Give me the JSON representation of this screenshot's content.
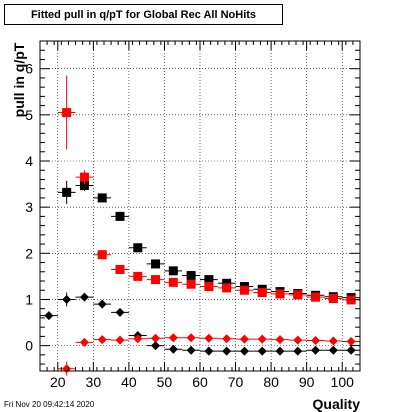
{
  "title": "Fitted pull in q/pT for Global Rec All NoHits",
  "timestamp": "Fri Nov 20 09:42:14 2020",
  "chart_data": {
    "type": "scatter",
    "title": "Fitted pull in q/pT for Global Rec All NoHits",
    "xlabel": "Quality",
    "ylabel": "pull in q/pT",
    "xlim": [
      15,
      105
    ],
    "ylim": [
      -0.55,
      6.6
    ],
    "xticks": [
      20,
      30,
      40,
      50,
      60,
      70,
      80,
      90,
      100
    ],
    "yticks": [
      0,
      1,
      2,
      3,
      4,
      5,
      6
    ],
    "grid": true,
    "legend": "none",
    "series": [
      {
        "marker": "square",
        "color": "#000000",
        "x": [
          22.5,
          27.5,
          32.5,
          37.5,
          42.5,
          47.5,
          52.5,
          57.5,
          62.5,
          67.5,
          72.5,
          77.5,
          82.5,
          87.5,
          92.5,
          97.5,
          102.5
        ],
        "y": [
          3.32,
          3.47,
          3.2,
          2.8,
          2.12,
          1.77,
          1.62,
          1.52,
          1.43,
          1.35,
          1.28,
          1.22,
          1.17,
          1.13,
          1.09,
          1.06,
          1.04
        ],
        "yerr": [
          0.25,
          0.12,
          0.06,
          0.05,
          0.03,
          0.03,
          0.02,
          0.02,
          0.02,
          0.02,
          0.02,
          0.02,
          0.02,
          0.02,
          0.02,
          0.02,
          0.02
        ]
      },
      {
        "marker": "square",
        "color": "#ff0000",
        "x": [
          22.5,
          27.5,
          32.5,
          37.5,
          42.5,
          47.5,
          52.5,
          57.5,
          62.5,
          67.5,
          72.5,
          77.5,
          82.5,
          87.5,
          92.5,
          97.5,
          102.5
        ],
        "y": [
          5.05,
          3.65,
          1.97,
          1.65,
          1.5,
          1.43,
          1.37,
          1.33,
          1.28,
          1.25,
          1.2,
          1.15,
          1.12,
          1.1,
          1.05,
          1.02,
          0.99
        ],
        "yerr": [
          0.8,
          0.15,
          0.05,
          0.04,
          0.03,
          0.03,
          0.02,
          0.02,
          0.02,
          0.02,
          0.02,
          0.02,
          0.02,
          0.02,
          0.02,
          0.02,
          0.02
        ]
      },
      {
        "marker": "diamond",
        "color": "#000000",
        "x": [
          17.5,
          22.5,
          27.5,
          32.5,
          37.5,
          42.5,
          47.5,
          52.5,
          57.5,
          62.5,
          67.5,
          72.5,
          77.5,
          82.5,
          87.5,
          92.5,
          97.5,
          102.5
        ],
        "y": [
          0.65,
          1.0,
          1.05,
          0.9,
          0.72,
          0.22,
          0.0,
          -0.08,
          -0.1,
          -0.12,
          -0.12,
          -0.12,
          -0.12,
          -0.12,
          -0.12,
          -0.1,
          -0.1,
          -0.1
        ],
        "yerr": [
          0.05,
          0.15,
          0.06,
          0.04,
          0.03,
          0.03,
          0.02,
          0.02,
          0.02,
          0.02,
          0.02,
          0.02,
          0.02,
          0.02,
          0.02,
          0.02,
          0.02,
          0.02
        ]
      },
      {
        "marker": "diamond",
        "color": "#ff0000",
        "x": [
          22.5,
          27.5,
          32.5,
          37.5,
          42.5,
          47.5,
          52.5,
          57.5,
          62.5,
          67.5,
          72.5,
          77.5,
          82.5,
          87.5,
          92.5,
          97.5,
          102.5
        ],
        "y": [
          -0.5,
          0.07,
          0.13,
          0.12,
          0.15,
          0.16,
          0.17,
          0.17,
          0.16,
          0.15,
          0.14,
          0.14,
          0.13,
          0.12,
          0.11,
          0.1,
          0.09
        ],
        "yerr": [
          0.15,
          0.05,
          0.03,
          0.03,
          0.02,
          0.02,
          0.02,
          0.02,
          0.02,
          0.02,
          0.02,
          0.02,
          0.02,
          0.02,
          0.02,
          0.02,
          0.02
        ]
      }
    ]
  }
}
